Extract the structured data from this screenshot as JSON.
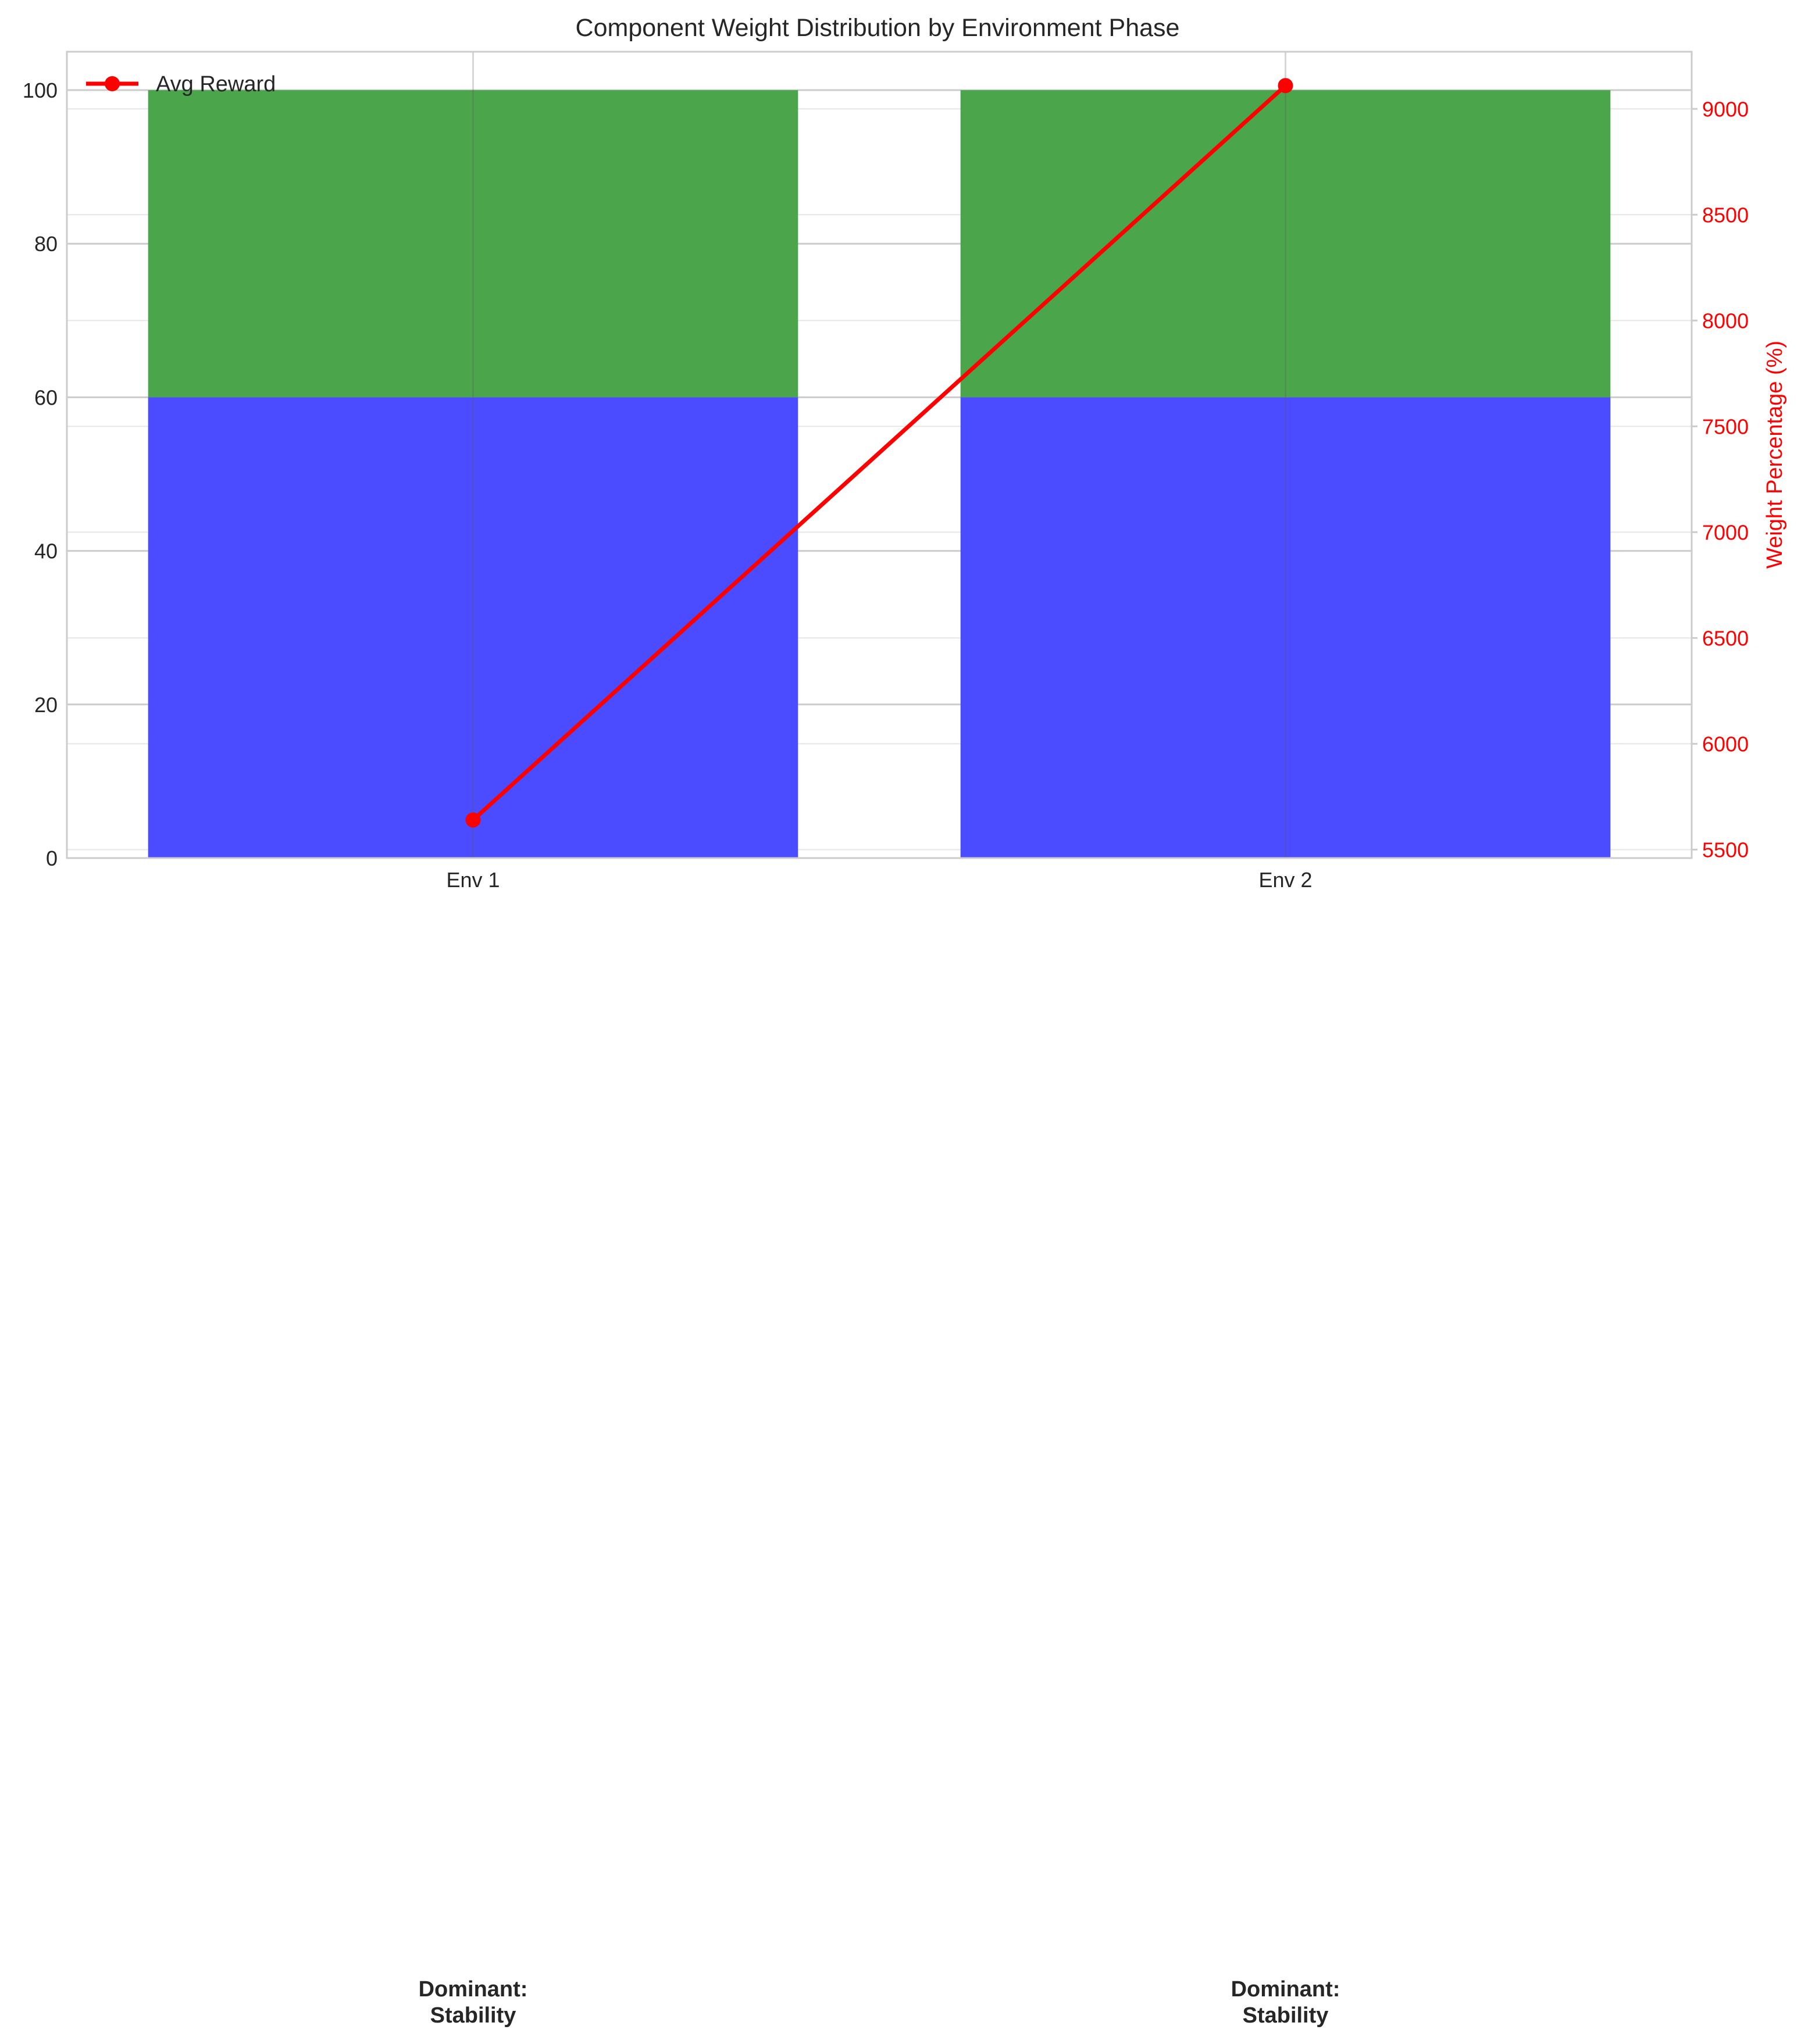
{
  "chart_data": {
    "type": "bar",
    "title": "Component Weight Distribution by Environment Phase",
    "categories": [
      "Env 1",
      "Env 2"
    ],
    "stacked": true,
    "series": [
      {
        "values": [
          60,
          60
        ],
        "color": "#4b4bff"
      },
      {
        "values": [
          40,
          40
        ],
        "color": "#4ba54b"
      }
    ],
    "ylim": [
      0,
      105
    ],
    "yticks": [
      0,
      20,
      40,
      60,
      80,
      100
    ],
    "line_series": {
      "name": "Avg Reward",
      "values": [
        5640,
        9110
      ],
      "color": "#ff0000",
      "axis": "right"
    },
    "y2label": "Weight Percentage (%)",
    "y2lim": [
      5460,
      9270
    ],
    "y2ticks": [
      5500,
      6000,
      6500,
      7000,
      7500,
      8000,
      8500,
      9000
    ],
    "legend": "top-left",
    "grid": true,
    "annotations": [
      "Dominant:\nStability",
      "Dominant:\nStability"
    ]
  }
}
